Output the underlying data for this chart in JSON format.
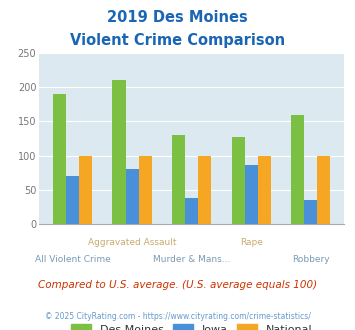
{
  "title_line1": "2019 Des Moines",
  "title_line2": "Violent Crime Comparison",
  "des_moines": [
    190,
    210,
    130,
    127,
    160
  ],
  "iowa": [
    70,
    80,
    38,
    86,
    35
  ],
  "national": [
    100,
    100,
    100,
    100,
    100
  ],
  "colors": {
    "des_moines": "#7bc043",
    "iowa": "#4a90d9",
    "national": "#f5a623"
  },
  "ylim": [
    0,
    250
  ],
  "yticks": [
    0,
    50,
    100,
    150,
    200,
    250
  ],
  "plot_bg": "#dce9f0",
  "title_color": "#1a66b5",
  "subtitle_note": "Compared to U.S. average. (U.S. average equals 100)",
  "footer": "© 2025 CityRating.com - https://www.cityrating.com/crime-statistics/",
  "subtitle_color": "#cc3300",
  "footer_color": "#6699cc",
  "bar_width": 0.22,
  "top_row_labels": [
    "",
    "Aggravated Assault",
    "",
    "Rape",
    ""
  ],
  "top_row_positions": [
    0,
    1,
    2,
    3,
    4
  ],
  "bottom_row_labels": [
    "All Violent Crime",
    "",
    "Murder & Mans...",
    "",
    "Robbery"
  ],
  "top_label_color": "#c8a96e",
  "bottom_label_color": "#7a9ab5"
}
